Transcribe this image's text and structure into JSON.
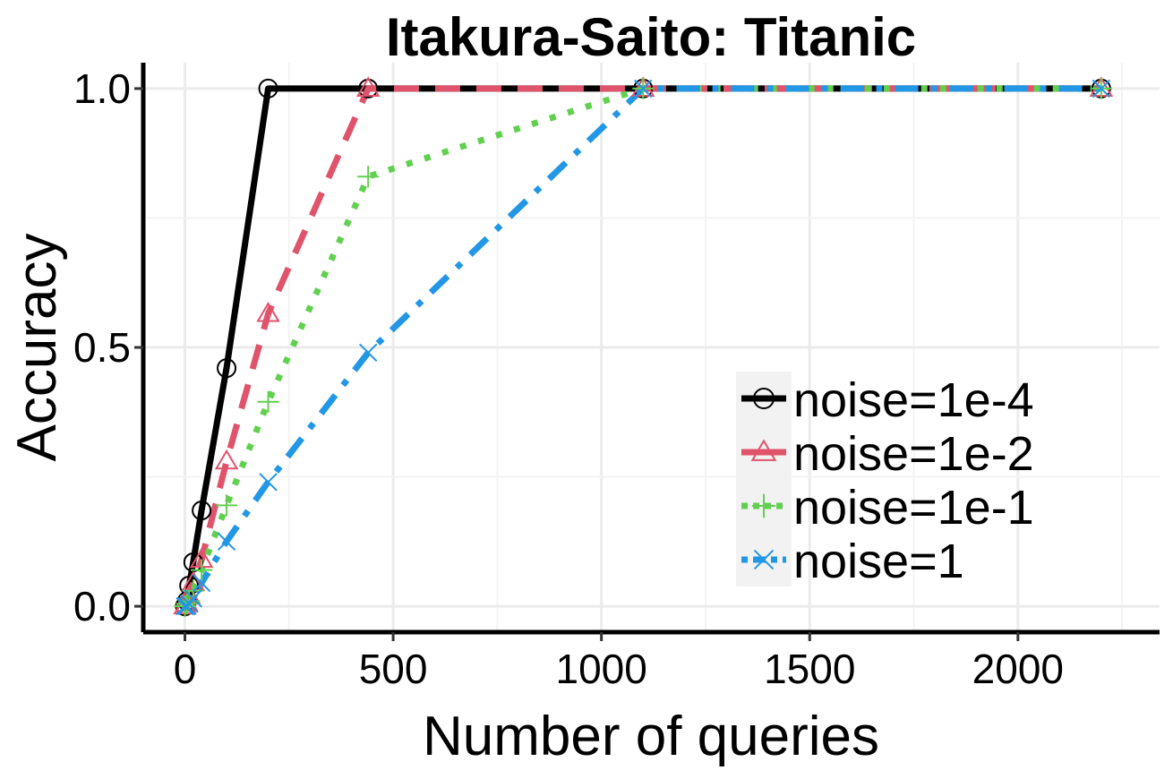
{
  "chart_data": {
    "type": "line",
    "title": "Itakura-Saito: Titanic",
    "xlabel": "Number of queries",
    "ylabel": "Accuracy",
    "xlim": [
      -100,
      2340
    ],
    "ylim": [
      -0.05,
      1.05
    ],
    "xticks": [
      0,
      500,
      1000,
      1500,
      2000
    ],
    "xtick_labels": [
      "0",
      "500",
      "1000",
      "1500",
      "2000"
    ],
    "yticks": [
      0.0,
      0.5,
      1.0
    ],
    "ytick_labels": [
      "0.0",
      "0.5",
      "1.0"
    ],
    "grid": true,
    "legend_position": "bottom-right",
    "series": [
      {
        "name": "noise=1e-4",
        "color": "#000000",
        "line_style": "solid",
        "marker": "circle",
        "x": [
          0,
          5,
          10,
          20,
          40,
          100,
          200,
          440,
          1100,
          2200
        ],
        "y": [
          0.0,
          0.01,
          0.04,
          0.085,
          0.185,
          0.46,
          1.0,
          1.0,
          1.0,
          1.0
        ]
      },
      {
        "name": "noise=1e-2",
        "color": "#df536b",
        "line_style": "dashed",
        "marker": "triangle",
        "x": [
          0,
          5,
          10,
          20,
          40,
          100,
          200,
          440,
          1100,
          2200
        ],
        "y": [
          0.0,
          0.005,
          0.02,
          0.045,
          0.09,
          0.28,
          0.565,
          1.0,
          1.0,
          1.0
        ]
      },
      {
        "name": "noise=1e-1",
        "color": "#61d04f",
        "line_style": "dotted",
        "marker": "plus",
        "x": [
          0,
          5,
          10,
          20,
          40,
          100,
          200,
          440,
          1100,
          2200
        ],
        "y": [
          0.0,
          0.005,
          0.01,
          0.03,
          0.07,
          0.195,
          0.395,
          0.83,
          1.0,
          1.0
        ]
      },
      {
        "name": "noise=1",
        "color": "#2297e6",
        "line_style": "dotdash",
        "marker": "cross",
        "x": [
          0,
          5,
          10,
          20,
          40,
          100,
          200,
          440,
          1100,
          2200
        ],
        "y": [
          0.0,
          0.0,
          0.005,
          0.015,
          0.045,
          0.125,
          0.24,
          0.49,
          1.0,
          1.0
        ]
      }
    ]
  }
}
